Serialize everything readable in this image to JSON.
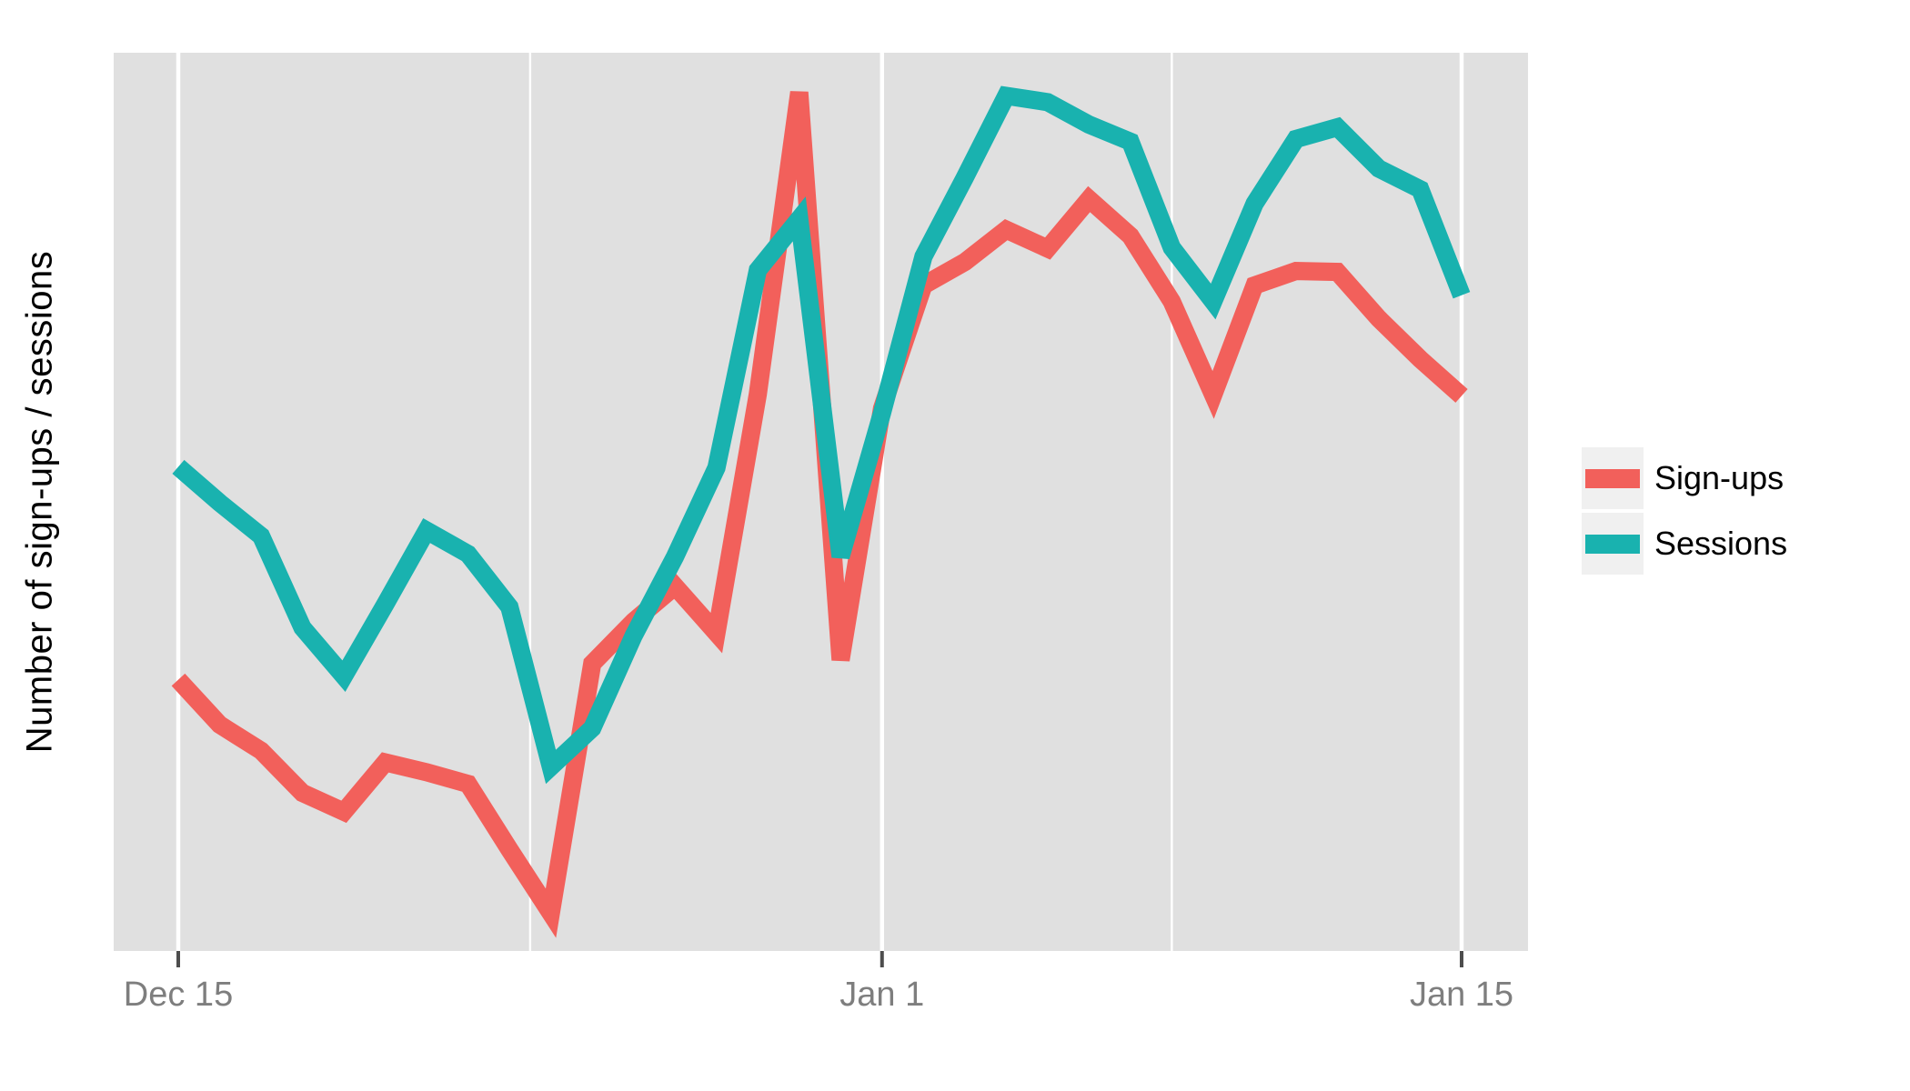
{
  "axes": {
    "y_title": "Number of sign-ups / sessions",
    "x_tick_labels": [
      "Dec 15",
      "Jan 1",
      "Jan 15"
    ],
    "y_tick_labels_shown": false
  },
  "legend": {
    "items": [
      {
        "label": "Sign-ups",
        "color": "#F2605B"
      },
      {
        "label": "Sessions",
        "color": "#19B2AF"
      }
    ]
  },
  "colors": {
    "signups_line": "#F2605B",
    "sessions_line": "#19B2AF",
    "panel_background": "#E0E0E0",
    "gridline": "#FFFFFF",
    "tick_mark": "#4D4D4D",
    "tick_label": "#7E7E7E",
    "legend_key_background": "#F0F0F0",
    "page_background": "#FFFFFF"
  },
  "chart_data": {
    "type": "line",
    "title": "",
    "xlabel": "",
    "ylabel": "Number of sign-ups / sessions",
    "x": [
      "Dec 15",
      "Dec 16",
      "Dec 17",
      "Dec 18",
      "Dec 19",
      "Dec 20",
      "Dec 21",
      "Dec 22",
      "Dec 23",
      "Dec 24",
      "Dec 25",
      "Dec 26",
      "Dec 27",
      "Dec 28",
      "Dec 29",
      "Dec 30",
      "Dec 31",
      "Jan 1",
      "Jan 2",
      "Jan 3",
      "Jan 4",
      "Jan 5",
      "Jan 6",
      "Jan 7",
      "Jan 8",
      "Jan 9",
      "Jan 10",
      "Jan 11",
      "Jan 12",
      "Jan 13",
      "Jan 14",
      "Jan 15"
    ],
    "series": [
      {
        "name": "Sign-ups",
        "color": "#F2605B",
        "values": [
          30.2,
          25.2,
          22.3,
          17.6,
          15.5,
          21.0,
          19.9,
          18.6,
          11.3,
          4.2,
          32.0,
          36.7,
          40.6,
          35.4,
          62.0,
          95.6,
          32.4,
          60.4,
          74.1,
          76.7,
          80.3,
          78.2,
          83.7,
          79.6,
          72.3,
          61.9,
          74.1,
          75.7,
          75.6,
          70.4,
          65.9,
          61.8
        ]
      },
      {
        "name": "Sessions",
        "color": "#19B2AF",
        "values": [
          53.9,
          49.9,
          46.2,
          36.0,
          30.6,
          38.6,
          46.8,
          44.2,
          38.3,
          20.5,
          24.8,
          35.1,
          43.9,
          53.8,
          75.8,
          81.5,
          43.9,
          59.9,
          77.3,
          86.1,
          95.2,
          94.5,
          92.0,
          90.1,
          78.3,
          72.3,
          83.2,
          90.4,
          91.7,
          87.1,
          84.8,
          73.0
        ]
      }
    ],
    "x_major_tick_indices": [
      0,
      17,
      31
    ],
    "x_tick_labels": [
      "Dec 15",
      "Jan 1",
      "Jan 15"
    ],
    "ylim": [
      0,
      100
    ],
    "y_axis_numeric_labels": "none shown",
    "grid": "vertical white major gridlines at Dec 15 / Jan 1 / Jan 15, thin minor gridlines at interval midpoints, no horizontal gridlines",
    "legend_position": "right"
  }
}
